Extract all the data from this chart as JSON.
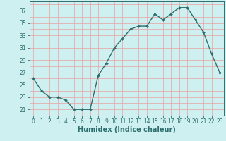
{
  "x": [
    0,
    1,
    2,
    3,
    4,
    5,
    6,
    7,
    8,
    9,
    10,
    11,
    12,
    13,
    14,
    15,
    16,
    17,
    18,
    19,
    20,
    21,
    22,
    23
  ],
  "y": [
    26,
    24,
    23,
    23,
    22.5,
    21,
    21,
    21,
    26.5,
    28.5,
    31,
    32.5,
    34,
    34.5,
    34.5,
    36.5,
    35.5,
    36.5,
    37.5,
    37.5,
    35.5,
    33.5,
    30,
    27
  ],
  "line_color": "#2d6e6e",
  "marker": "D",
  "marker_size": 2.0,
  "bg_color": "#cff0f0",
  "grid_color": "#e8a0a0",
  "xlabel": "Humidex (Indice chaleur)",
  "ylim": [
    20.5,
    38.5
  ],
  "xlim": [
    -0.5,
    23.5
  ],
  "yticks": [
    21,
    23,
    25,
    27,
    29,
    31,
    33,
    35,
    37
  ],
  "xticks": [
    0,
    1,
    2,
    3,
    4,
    5,
    6,
    7,
    8,
    9,
    10,
    11,
    12,
    13,
    14,
    15,
    16,
    17,
    18,
    19,
    20,
    21,
    22,
    23
  ],
  "tick_fontsize": 5.5,
  "xlabel_fontsize": 7.0,
  "line_width": 1.0
}
